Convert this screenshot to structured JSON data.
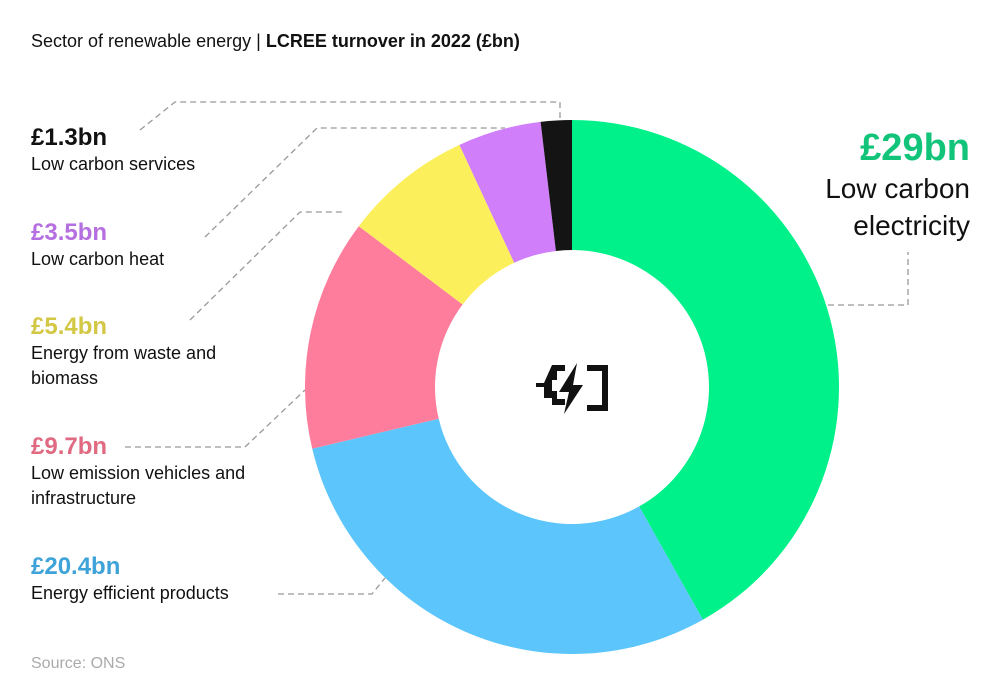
{
  "title": {
    "prefix": "Sector of renewable energy |",
    "main": "LCREE turnover in 2022 (£bn)"
  },
  "source": "Source: ONS",
  "center_icon": "battery-charging-icon",
  "chart_data": {
    "type": "pie",
    "donut": true,
    "title": "Sector of renewable energy | LCREE turnover in 2022 (£bn)",
    "unit": "£bn",
    "slices": [
      {
        "name": "Low carbon electricity",
        "value": 29,
        "label": "£29bn",
        "color": "#00f08a",
        "label_color": "#12c47a"
      },
      {
        "name": "Energy efficient products",
        "value": 20.4,
        "label": "£20.4bn",
        "color": "#5cc6fc",
        "label_color": "#3ea3d8"
      },
      {
        "name": "Low emission vehicles and infrastructure",
        "value": 9.7,
        "label": "£9.7bn",
        "color": "#ff7d9c",
        "label_color": "#e06a82"
      },
      {
        "name": "Energy from waste and biomass",
        "value": 5.4,
        "label": "£5.4bn",
        "color": "#fcef5c",
        "label_color": "#d3c746"
      },
      {
        "name": "Low carbon heat",
        "value": 3.5,
        "label": "£3.5bn",
        "color": "#d17efb",
        "label_color": "#b56fe0"
      },
      {
        "name": "Low carbon services",
        "value": 1.3,
        "label": "£1.3bn",
        "color": "#141414",
        "label_color": "#111111"
      }
    ]
  }
}
